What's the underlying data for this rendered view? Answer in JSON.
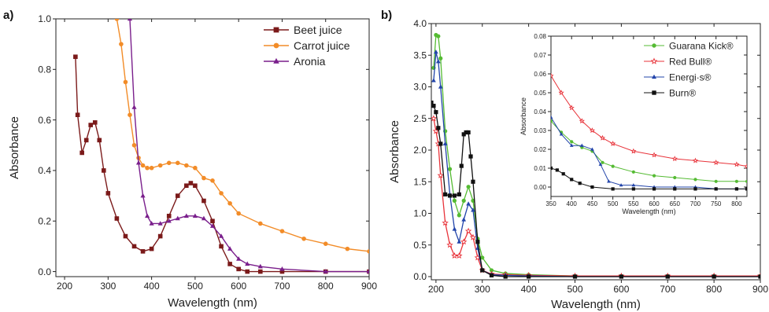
{
  "panel_labels": [
    "a)",
    "b)"
  ],
  "chart_data": [
    {
      "type": "line",
      "panel": "a)",
      "title": "",
      "xlabel": "Wavelength (nm)",
      "ylabel": "Absorbance",
      "xlim": [
        180,
        900
      ],
      "ylim": [
        -0.02,
        1.0
      ],
      "xticks": [
        200,
        300,
        400,
        500,
        600,
        700,
        800,
        900
      ],
      "yticks": [
        0.0,
        0.2,
        0.4,
        0.6,
        0.8,
        1.0
      ],
      "ytick_labels": [
        "0.0",
        "0.2",
        "0.4",
        "0.6",
        "0.8",
        "1.0"
      ],
      "grid": false,
      "legend_position": "top-right",
      "series": [
        {
          "name": "Beet juice",
          "color": "#7b1a1a",
          "marker": "square",
          "x": [
            225,
            230,
            240,
            250,
            260,
            270,
            280,
            290,
            300,
            320,
            340,
            360,
            380,
            400,
            420,
            440,
            460,
            480,
            490,
            500,
            520,
            540,
            560,
            580,
            600,
            620,
            650,
            700,
            800,
            900
          ],
          "y": [
            0.85,
            0.62,
            0.47,
            0.52,
            0.58,
            0.59,
            0.52,
            0.4,
            0.31,
            0.21,
            0.14,
            0.1,
            0.08,
            0.09,
            0.14,
            0.22,
            0.3,
            0.34,
            0.35,
            0.34,
            0.28,
            0.2,
            0.1,
            0.03,
            0.01,
            0.0,
            0.0,
            0.0,
            0.0,
            0.0
          ]
        },
        {
          "name": "Carrot juice",
          "color": "#f28c28",
          "marker": "circle",
          "x": [
            320,
            330,
            340,
            350,
            360,
            370,
            380,
            390,
            400,
            420,
            440,
            460,
            480,
            500,
            520,
            540,
            560,
            580,
            600,
            650,
            700,
            750,
            800,
            850,
            900
          ],
          "y": [
            1.0,
            0.9,
            0.75,
            0.62,
            0.5,
            0.45,
            0.42,
            0.41,
            0.41,
            0.42,
            0.43,
            0.43,
            0.42,
            0.41,
            0.37,
            0.36,
            0.31,
            0.27,
            0.23,
            0.19,
            0.16,
            0.13,
            0.11,
            0.09,
            0.08
          ]
        },
        {
          "name": "Aronia",
          "color": "#7a1f8c",
          "marker": "triangle",
          "x": [
            350,
            360,
            370,
            380,
            390,
            400,
            420,
            440,
            460,
            480,
            500,
            520,
            540,
            560,
            580,
            600,
            620,
            650,
            700,
            800,
            900
          ],
          "y": [
            1.0,
            0.65,
            0.43,
            0.3,
            0.22,
            0.19,
            0.19,
            0.2,
            0.21,
            0.22,
            0.22,
            0.21,
            0.18,
            0.14,
            0.09,
            0.05,
            0.03,
            0.02,
            0.01,
            0.0,
            0.0
          ]
        }
      ]
    },
    {
      "type": "line",
      "panel": "b)",
      "title": "",
      "xlabel": "Wavelength (nm)",
      "ylabel": "Absorbance",
      "xlim": [
        190,
        900
      ],
      "ylim": [
        -0.05,
        4.0
      ],
      "xticks": [
        200,
        300,
        400,
        500,
        600,
        700,
        800,
        900
      ],
      "yticks": [
        0.0,
        0.5,
        1.0,
        1.5,
        2.0,
        2.5,
        3.0,
        3.5,
        4.0
      ],
      "ytick_labels": [
        "0.0",
        "0.5",
        "1.0",
        "1.5",
        "2.0",
        "2.5",
        "3.0",
        "3.5",
        "4.0"
      ],
      "grid": false,
      "legend_position": "top-right",
      "series": [
        {
          "name": "Guarana Kick®",
          "color": "#55bb33",
          "marker": "circle",
          "x": [
            195,
            200,
            205,
            210,
            220,
            230,
            240,
            250,
            260,
            270,
            280,
            290,
            300,
            320,
            350,
            400,
            500,
            600,
            700,
            800,
            900
          ],
          "y": [
            3.3,
            3.82,
            3.8,
            3.45,
            2.3,
            1.7,
            1.2,
            0.97,
            1.2,
            1.42,
            1.2,
            0.6,
            0.3,
            0.1,
            0.05,
            0.03,
            0.01,
            0.01,
            0.01,
            0.01,
            0.01
          ]
        },
        {
          "name": "Red Bull®",
          "color": "#e8333a",
          "marker": "star",
          "x": [
            195,
            200,
            205,
            210,
            220,
            230,
            240,
            250,
            260,
            270,
            280,
            290,
            300,
            320,
            350,
            400,
            500,
            600,
            700,
            800,
            900
          ],
          "y": [
            2.5,
            2.3,
            2.1,
            1.6,
            0.85,
            0.5,
            0.33,
            0.33,
            0.55,
            0.72,
            0.62,
            0.3,
            0.1,
            0.04,
            0.03,
            0.02,
            0.01,
            0.01,
            0.01,
            0.01,
            0.01
          ]
        },
        {
          "name": "Energi·s®",
          "color": "#2244aa",
          "marker": "triangle",
          "x": [
            195,
            200,
            205,
            210,
            220,
            230,
            240,
            250,
            260,
            270,
            280,
            290,
            300,
            320,
            350,
            400,
            500,
            600,
            700,
            800,
            900
          ],
          "y": [
            3.1,
            3.55,
            3.4,
            3.0,
            2.1,
            1.3,
            0.75,
            0.55,
            0.9,
            1.15,
            1.05,
            0.45,
            0.1,
            0.03,
            0.02,
            0.01,
            0.0,
            0.0,
            0.0,
            0.0,
            0.0
          ]
        },
        {
          "name": "Burn®",
          "color": "#111111",
          "marker": "square",
          "x": [
            190,
            195,
            200,
            205,
            210,
            220,
            230,
            240,
            250,
            255,
            260,
            265,
            270,
            275,
            280,
            290,
            300,
            320,
            350,
            400,
            500,
            600,
            700,
            800,
            900
          ],
          "y": [
            2.75,
            2.7,
            2.6,
            2.35,
            2.1,
            1.3,
            1.28,
            1.28,
            1.3,
            1.75,
            2.25,
            2.28,
            2.28,
            1.9,
            1.5,
            0.55,
            0.1,
            0.02,
            0.0,
            0.0,
            0.0,
            0.0,
            0.0,
            0.0,
            0.0
          ]
        }
      ]
    },
    {
      "type": "line",
      "panel": "b) inset",
      "title": "",
      "xlabel": "Wavelength (nm)",
      "ylabel": "Absorbance",
      "xlim": [
        350,
        825
      ],
      "ylim": [
        -0.005,
        0.08
      ],
      "xticks": [
        350,
        400,
        450,
        500,
        550,
        600,
        650,
        700,
        750,
        800
      ],
      "yticks": [
        0.0,
        0.01,
        0.02,
        0.03,
        0.04,
        0.05,
        0.06,
        0.07,
        0.08
      ],
      "ytick_labels": [
        "0.00",
        "0.01",
        "0.02",
        "0.03",
        "0.04",
        "0.05",
        "0.06",
        "0.07",
        "0.08"
      ],
      "grid": false,
      "legend_position": "top-right",
      "series": [
        {
          "name": "Guarana Kick®",
          "color": "#55bb33",
          "marker": "circle",
          "x": [
            350,
            375,
            400,
            425,
            450,
            475,
            500,
            550,
            600,
            650,
            700,
            750,
            800,
            825
          ],
          "y": [
            0.035,
            0.029,
            0.024,
            0.021,
            0.019,
            0.013,
            0.011,
            0.008,
            0.006,
            0.005,
            0.004,
            0.003,
            0.003,
            0.003
          ]
        },
        {
          "name": "Red Bull®",
          "color": "#e8333a",
          "marker": "star",
          "x": [
            350,
            375,
            400,
            425,
            450,
            475,
            500,
            550,
            600,
            650,
            700,
            750,
            800,
            825
          ],
          "y": [
            0.059,
            0.05,
            0.042,
            0.035,
            0.03,
            0.026,
            0.023,
            0.019,
            0.017,
            0.015,
            0.014,
            0.013,
            0.012,
            0.011
          ]
        },
        {
          "name": "Energi·s®",
          "color": "#2244aa",
          "marker": "triangle",
          "x": [
            350,
            375,
            400,
            425,
            450,
            470,
            490,
            520,
            550,
            600,
            650,
            700,
            750,
            800,
            825
          ],
          "y": [
            0.037,
            0.028,
            0.022,
            0.022,
            0.02,
            0.012,
            0.003,
            0.001,
            0.001,
            0.0,
            0.0,
            0.0,
            -0.001,
            -0.001,
            -0.001
          ]
        },
        {
          "name": "Burn®",
          "color": "#111111",
          "marker": "square",
          "x": [
            350,
            365,
            380,
            400,
            420,
            450,
            500,
            550,
            600,
            650,
            700,
            750,
            800,
            825
          ],
          "y": [
            0.01,
            0.009,
            0.007,
            0.004,
            0.002,
            0.0,
            -0.001,
            -0.001,
            -0.001,
            -0.001,
            -0.001,
            -0.001,
            -0.001,
            -0.001
          ]
        }
      ]
    }
  ]
}
